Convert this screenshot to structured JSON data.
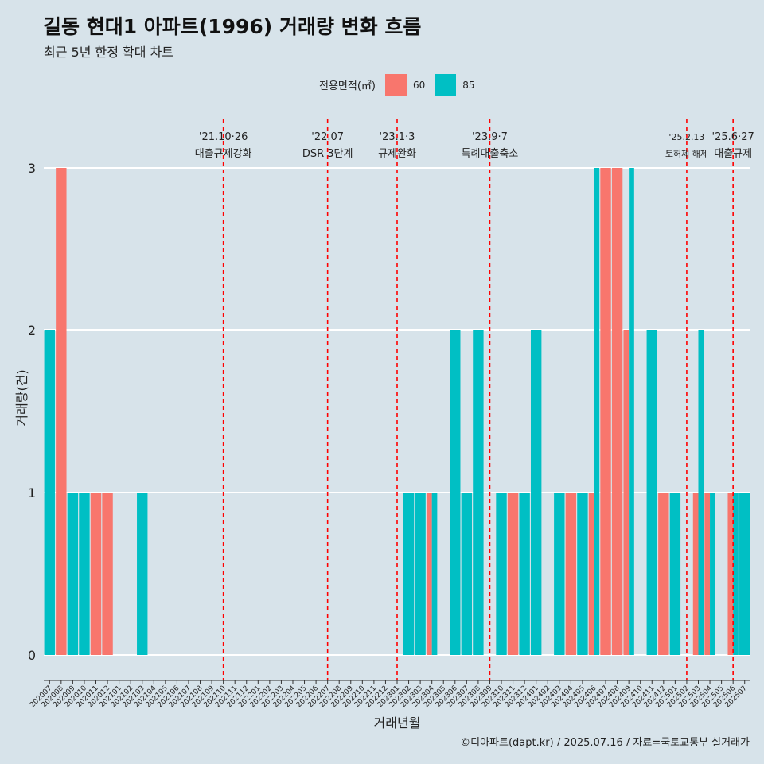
{
  "title": "길동 현대1 아파트(1996) 거래량 변화 흐름",
  "subtitle": "최근 5년 한정 확대 차트",
  "caption": "©디아파트(dapt.kr) / 2025.07.16 / 자료=국토교통부 실거래가",
  "legend": {
    "title": "전용면적(㎡)",
    "items": [
      {
        "label": "60",
        "color": "#f8766d"
      },
      {
        "label": "85",
        "color": "#00bfc4"
      }
    ]
  },
  "chart_data": {
    "type": "bar",
    "xlabel": "거래년월",
    "ylabel": "거래량(건)",
    "ylim": [
      0,
      3
    ],
    "yticks": [
      0,
      1,
      2,
      3
    ],
    "grid": "horizontal",
    "legend_position": "top",
    "categories": [
      "202007",
      "202008",
      "202009",
      "202010",
      "202011",
      "202012",
      "202101",
      "202102",
      "202103",
      "202104",
      "202105",
      "202106",
      "202107",
      "202108",
      "202109",
      "202110",
      "202111",
      "202112",
      "202201",
      "202202",
      "202203",
      "202204",
      "202205",
      "202206",
      "202207",
      "202208",
      "202209",
      "202210",
      "202211",
      "202212",
      "202301",
      "202302",
      "202303",
      "202304",
      "202305",
      "202306",
      "202307",
      "202308",
      "202309",
      "202310",
      "202311",
      "202312",
      "202401",
      "202402",
      "202403",
      "202404",
      "202405",
      "202406",
      "202407",
      "202408",
      "202409",
      "202410",
      "202411",
      "202412",
      "202501",
      "202502",
      "202503",
      "202504",
      "202505",
      "202506",
      "202507"
    ],
    "series": [
      {
        "name": "60",
        "color": "#f8766d",
        "values": [
          0,
          3,
          0,
          0,
          1,
          1,
          0,
          0,
          0,
          0,
          0,
          0,
          0,
          0,
          0,
          0,
          0,
          0,
          0,
          0,
          0,
          0,
          0,
          0,
          0,
          0,
          0,
          0,
          0,
          0,
          0,
          0,
          0,
          1,
          0,
          0,
          0,
          0,
          0,
          0,
          1,
          0,
          0,
          0,
          0,
          1,
          0,
          1,
          3,
          3,
          2,
          0,
          0,
          1,
          0,
          0,
          1,
          1,
          0,
          1,
          0
        ]
      },
      {
        "name": "85",
        "color": "#00bfc4",
        "values": [
          2,
          0,
          1,
          1,
          0,
          0,
          0,
          0,
          1,
          0,
          0,
          0,
          0,
          0,
          0,
          0,
          0,
          0,
          0,
          0,
          0,
          0,
          0,
          0,
          0,
          0,
          0,
          0,
          0,
          0,
          0,
          1,
          1,
          1,
          0,
          2,
          1,
          2,
          0,
          1,
          0,
          1,
          2,
          0,
          1,
          0,
          1,
          3,
          0,
          0,
          3,
          0,
          2,
          0,
          1,
          0,
          2,
          1,
          0,
          1,
          1
        ]
      }
    ],
    "annotations": [
      {
        "date": "202110",
        "label1": "'21.10·26",
        "label2": "대출규제강화"
      },
      {
        "date": "202207",
        "label1": "'22.07",
        "label2": "DSR 3단계"
      },
      {
        "date": "202301",
        "label1": "'23.1·3",
        "label2": "규제완화"
      },
      {
        "date": "202309",
        "label1": "'23.9·7",
        "label2": "특례대출축소"
      },
      {
        "date": "202502",
        "label1": "'25.2.13",
        "label2": "토허제 해제"
      },
      {
        "date": "202506",
        "label1": "'25.6·27",
        "label2": "대출규제"
      }
    ],
    "annotation_line_color": "#ff0000"
  }
}
